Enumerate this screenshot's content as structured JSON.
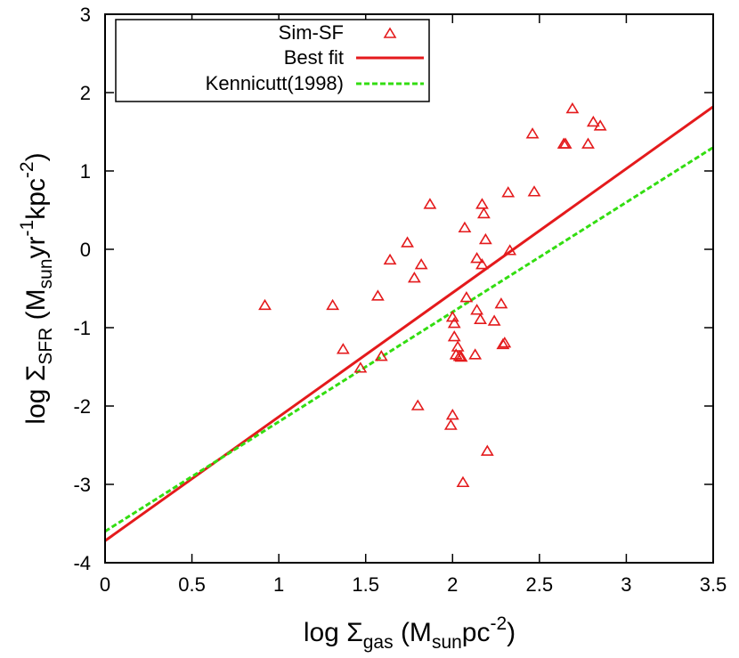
{
  "chart_data": {
    "type": "scatter",
    "title": "",
    "xlabel": {
      "prefix": "log Σ",
      "sub": "gas",
      "mid": " (M",
      "sub2": "sun",
      "post": "pc",
      "sup": "-2",
      "end": ")"
    },
    "ylabel": {
      "prefix": "log Σ",
      "sub": "SFR",
      "mid": " (M",
      "sub2": "sun",
      "post1": "yr",
      "sup1": "-1",
      "post2": "kpc",
      "sup2": "-2",
      "end": ")"
    },
    "xlim": [
      0,
      3.5
    ],
    "ylim": [
      -4,
      3
    ],
    "xticks": [
      0,
      0.5,
      1,
      1.5,
      2,
      2.5,
      3,
      3.5
    ],
    "xtick_labels": [
      "0",
      "0.5",
      "1",
      "1.5",
      "2",
      "2.5",
      "3",
      "3.5"
    ],
    "yticks": [
      -4,
      -3,
      -2,
      -1,
      0,
      1,
      2,
      3
    ],
    "ytick_labels": [
      "-4",
      "-3",
      "-2",
      "-1",
      "0",
      "1",
      "2",
      "3"
    ],
    "grid": false,
    "legend_position": "top-left",
    "series": [
      {
        "name": "Sim-SF",
        "kind": "scatter",
        "marker": "triangle",
        "color": "#e41a1c",
        "points": [
          [
            0.92,
            -0.72
          ],
          [
            1.31,
            -0.72
          ],
          [
            1.37,
            -1.28
          ],
          [
            1.47,
            -1.52
          ],
          [
            1.57,
            -0.6
          ],
          [
            1.59,
            -1.37
          ],
          [
            1.64,
            -0.14
          ],
          [
            1.74,
            0.08
          ],
          [
            1.78,
            -0.37
          ],
          [
            1.8,
            -2.0
          ],
          [
            1.82,
            -0.2
          ],
          [
            1.87,
            0.57
          ],
          [
            1.99,
            -2.25
          ],
          [
            2.0,
            -0.87
          ],
          [
            2.0,
            -2.12
          ],
          [
            2.01,
            -0.95
          ],
          [
            2.01,
            -1.12
          ],
          [
            2.02,
            -1.35
          ],
          [
            2.03,
            -1.25
          ],
          [
            2.04,
            -1.37
          ],
          [
            2.05,
            -1.38
          ],
          [
            2.06,
            -2.98
          ],
          [
            2.07,
            0.27
          ],
          [
            2.08,
            -0.62
          ],
          [
            2.13,
            -1.35
          ],
          [
            2.14,
            -0.78
          ],
          [
            2.14,
            -0.12
          ],
          [
            2.16,
            -0.9
          ],
          [
            2.17,
            -0.2
          ],
          [
            2.17,
            0.57
          ],
          [
            2.18,
            0.45
          ],
          [
            2.19,
            0.12
          ],
          [
            2.2,
            -2.58
          ],
          [
            2.24,
            -0.92
          ],
          [
            2.28,
            -0.7
          ],
          [
            2.29,
            -1.22
          ],
          [
            2.3,
            -1.2
          ],
          [
            2.32,
            0.72
          ],
          [
            2.33,
            -0.02
          ],
          [
            2.46,
            1.47
          ],
          [
            2.47,
            0.73
          ],
          [
            2.64,
            1.34
          ],
          [
            2.65,
            1.34
          ],
          [
            2.69,
            1.79
          ],
          [
            2.78,
            1.34
          ],
          [
            2.81,
            1.62
          ],
          [
            2.85,
            1.57
          ]
        ]
      },
      {
        "name": "Best fit",
        "kind": "line",
        "style": "solid",
        "color": "#e41a1c",
        "x": [
          0,
          3.5
        ],
        "y": [
          -3.72,
          1.82
        ]
      },
      {
        "name": "Kennicutt(1998)",
        "kind": "line",
        "style": "dashed",
        "color": "#33dd11",
        "x": [
          0,
          3.5
        ],
        "y": [
          -3.6,
          1.3
        ]
      }
    ]
  }
}
